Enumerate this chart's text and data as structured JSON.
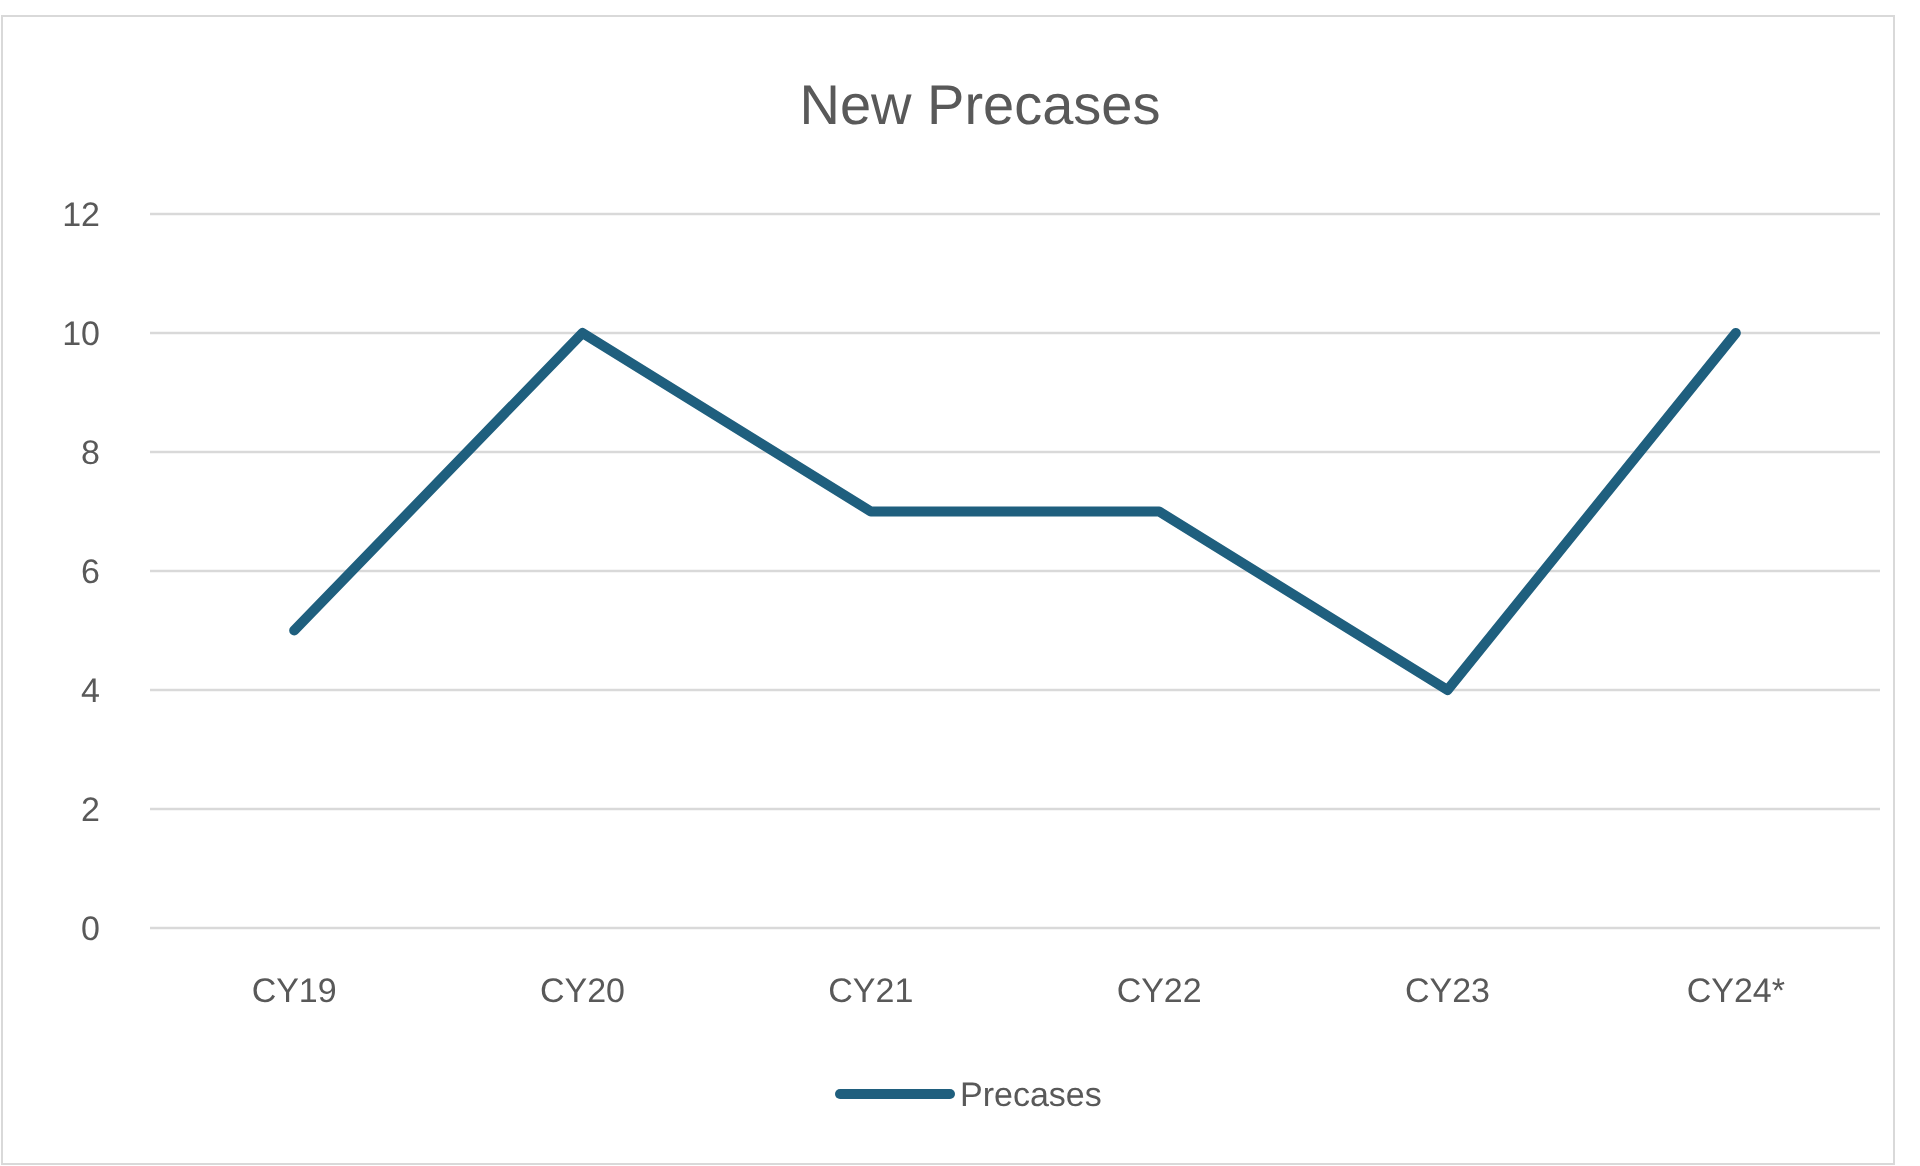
{
  "chart_data": {
    "type": "line",
    "title": "New Precases",
    "categories": [
      "CY19",
      "CY20",
      "CY21",
      "CY22",
      "CY23",
      "CY24*"
    ],
    "series": [
      {
        "name": "Precases",
        "color": "#1f5f7e",
        "values": [
          5,
          10,
          7,
          7,
          4,
          10
        ]
      }
    ],
    "ylim": [
      0,
      12
    ],
    "yticks": [
      0,
      2,
      4,
      6,
      8,
      10,
      12
    ],
    "grid": "y",
    "legend": "bottom",
    "marker": "none",
    "line_style": "solid"
  }
}
